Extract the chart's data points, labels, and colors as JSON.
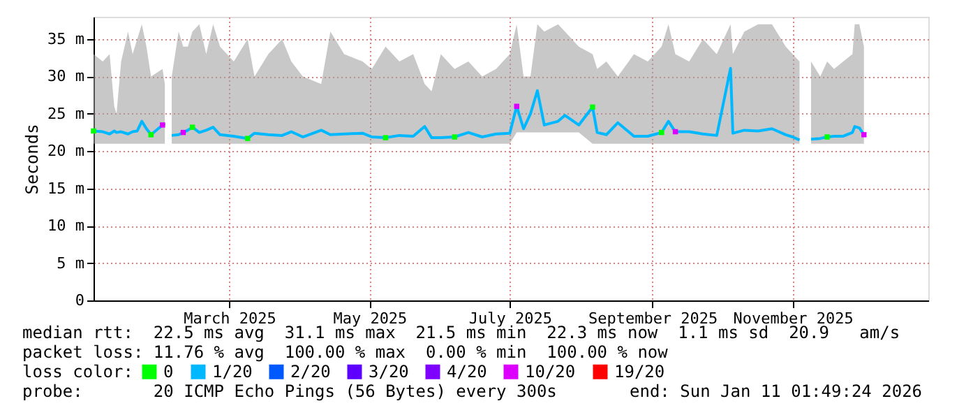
{
  "chart_data": {
    "type": "line",
    "ylabel": "Seconds",
    "legend_title": "loss color:",
    "legend": "bottom",
    "grid": true,
    "line_style": "solid",
    "xlim": [
      "2025-01-01",
      "2025-12-30"
    ],
    "xticks": [
      {
        "value": "2025-03-01",
        "label": "March 2025"
      },
      {
        "value": "2025-05-01",
        "label": "May 2025"
      },
      {
        "value": "2025-07-01",
        "label": "July 2025"
      },
      {
        "value": "2025-09-01",
        "label": "September 2025"
      },
      {
        "value": "2025-11-01",
        "label": "November 2025"
      }
    ],
    "ylim": [
      0,
      38
    ],
    "yticks": [
      0,
      {
        "value": 5,
        "label": "5 m"
      },
      {
        "value": 10,
        "label": "10 m"
      },
      {
        "value": 15,
        "label": "15 m"
      },
      {
        "value": 20,
        "label": "20 m"
      },
      {
        "value": 25,
        "label": "25 m"
      },
      {
        "value": 30,
        "label": "30 m"
      },
      {
        "value": 35,
        "label": "35 m"
      }
    ],
    "x": [
      "2025-01-01",
      "2025-01-05",
      "2025-01-08",
      "2025-01-10",
      "2025-01-11",
      "2025-01-13",
      "2025-01-16",
      "2025-01-18",
      "2025-01-20",
      "2025-01-22",
      "2025-01-24",
      "2025-01-26",
      "2025-01-31",
      "2025-02-01",
      "2025-02-02",
      "2025-02-04",
      "2025-02-07",
      "2025-02-09",
      "2025-02-11",
      "2025-02-13",
      "2025-02-16",
      "2025-02-19",
      "2025-02-22",
      "2025-02-25",
      "2025-03-03",
      "2025-03-09",
      "2025-03-12",
      "2025-03-18",
      "2025-03-24",
      "2025-03-28",
      "2025-04-02",
      "2025-04-10",
      "2025-04-14",
      "2025-04-20",
      "2025-04-28",
      "2025-05-02",
      "2025-05-08",
      "2025-05-14",
      "2025-05-20",
      "2025-05-25",
      "2025-05-28",
      "2025-06-01",
      "2025-06-07",
      "2025-06-13",
      "2025-06-19",
      "2025-06-25",
      "2025-07-01",
      "2025-07-04",
      "2025-07-07",
      "2025-07-10",
      "2025-07-13",
      "2025-07-16",
      "2025-07-22",
      "2025-07-25",
      "2025-07-31",
      "2025-08-06",
      "2025-08-08",
      "2025-08-12",
      "2025-08-17",
      "2025-08-24",
      "2025-08-30",
      "2025-09-05",
      "2025-09-08",
      "2025-09-11",
      "2025-09-17",
      "2025-09-23",
      "2025-09-29",
      "2025-10-05",
      "2025-10-06",
      "2025-10-11",
      "2025-10-17",
      "2025-10-23",
      "2025-10-29",
      "2025-11-01",
      "2025-11-04",
      "2025-11-06",
      "2025-11-09",
      "2025-11-13",
      "2025-11-16",
      "2025-11-19",
      "2025-11-23",
      "2025-11-27",
      "2025-11-28",
      "2025-11-30",
      "2025-12-02"
    ],
    "series": [
      {
        "name": "0",
        "type": "scatter",
        "marker": "square",
        "color": "#00ff00",
        "x": [
          "2025-01-01",
          "2025-01-26",
          "2025-02-13",
          "2025-03-09",
          "2025-05-08",
          "2025-06-07",
          "2025-08-06",
          "2025-09-05",
          "2025-11-16"
        ],
        "values": [
          22.7,
          22.2,
          23.2,
          21.7,
          21.8,
          21.9,
          25.9,
          22.5,
          21.9
        ]
      },
      {
        "name": "1/20",
        "color": "#00b8ff",
        "values": [
          22.7,
          22.6,
          22.3,
          22.7,
          22.5,
          22.6,
          22.3,
          22.6,
          22.7,
          24.0,
          23.0,
          22.2,
          23.5,
          23.7,
          null,
          22.1,
          22.2,
          22.5,
          22.8,
          23.2,
          22.5,
          22.8,
          23.2,
          22.2,
          22.0,
          21.7,
          22.4,
          22.2,
          22.1,
          22.6,
          21.9,
          22.8,
          22.2,
          22.3,
          22.4,
          21.9,
          21.8,
          22.1,
          22.0,
          23.3,
          21.8,
          21.8,
          21.9,
          22.5,
          21.9,
          22.3,
          22.4,
          26.0,
          23.0,
          25.0,
          28.1,
          23.5,
          24.0,
          24.8,
          23.5,
          25.9,
          22.5,
          22.2,
          23.8,
          22.0,
          22.0,
          22.5,
          24.0,
          22.6,
          22.6,
          22.3,
          22.1,
          31.1,
          22.4,
          22.8,
          22.7,
          23.0,
          22.2,
          21.9,
          21.5,
          null,
          21.6,
          21.7,
          21.9,
          22.0,
          22.0,
          22.5,
          23.3,
          23.1,
          22.2
        ],
        "lower": [
          21,
          21,
          21,
          21,
          21,
          21,
          21,
          21,
          21,
          21,
          21,
          21,
          21,
          21,
          null,
          21,
          21,
          21,
          21,
          21,
          21,
          21,
          21,
          21,
          21,
          21,
          21,
          21,
          21,
          21,
          21,
          21,
          21,
          21,
          21,
          21,
          21,
          21,
          21,
          21,
          21,
          21,
          21,
          21,
          21,
          21,
          21,
          22.5,
          22.5,
          22.5,
          22.5,
          22.5,
          22.5,
          22.5,
          22.5,
          21,
          21,
          21,
          21,
          21,
          21,
          21,
          21,
          21,
          21,
          21,
          21,
          21,
          21,
          21,
          21,
          21,
          21,
          21,
          21,
          null,
          21,
          21,
          21,
          21,
          21,
          21,
          21,
          21,
          21
        ],
        "upper": [
          33,
          32,
          33,
          26,
          25,
          32,
          36,
          33,
          35,
          37,
          34,
          30,
          31,
          29,
          null,
          30,
          36,
          34,
          34,
          36,
          37,
          33,
          37,
          34,
          32,
          35,
          30,
          33,
          35,
          32,
          30,
          29,
          36,
          33,
          32,
          31,
          34,
          32,
          33,
          29,
          28,
          33,
          31,
          32,
          30,
          31,
          33,
          37,
          30,
          30,
          37,
          36,
          37,
          36,
          34,
          33,
          31,
          32,
          30,
          33,
          32,
          34,
          37,
          33,
          32,
          35,
          33,
          37,
          33,
          36,
          37,
          37,
          34,
          33,
          32,
          null,
          32,
          30,
          32,
          31,
          32,
          33,
          37,
          37,
          34
        ]
      },
      {
        "name": "2/20",
        "type": "scatter",
        "color": "#0059ff",
        "values": [
          null,
          null,
          null,
          null,
          null,
          null,
          null,
          null,
          null,
          null,
          null,
          null,
          null,
          null,
          null,
          null,
          null,
          null,
          null,
          null,
          null,
          null,
          null,
          null,
          null,
          null,
          null,
          null,
          null,
          null,
          null,
          null,
          null,
          null,
          null,
          null,
          null,
          null,
          null,
          null,
          null,
          null,
          null,
          null,
          null,
          null,
          null,
          null,
          null,
          null,
          null,
          null,
          null,
          null,
          null,
          null,
          null,
          null,
          null,
          null,
          null,
          null,
          null,
          null,
          null,
          null,
          null,
          null,
          null,
          null,
          null,
          null,
          null,
          null,
          null,
          null,
          null,
          null,
          null,
          null,
          null,
          null,
          null,
          null,
          null
        ]
      },
      {
        "name": "3/20",
        "type": "scatter",
        "color": "#5e00ff",
        "values": [
          null,
          null,
          null,
          null,
          null,
          null,
          null,
          null,
          null,
          null,
          null,
          null,
          null,
          null,
          null,
          null,
          null,
          null,
          null,
          null,
          null,
          null,
          null,
          null,
          null,
          null,
          null,
          null,
          null,
          null,
          null,
          null,
          null,
          null,
          null,
          null,
          null,
          null,
          null,
          null,
          null,
          null,
          null,
          null,
          null,
          null,
          null,
          null,
          null,
          null,
          null,
          null,
          null,
          null,
          null,
          null,
          null,
          null,
          null,
          null,
          null,
          null,
          null,
          null,
          null,
          null,
          null,
          null,
          null,
          null,
          null,
          null,
          null,
          null,
          null,
          null,
          null,
          null,
          null,
          null,
          null,
          null,
          null,
          null,
          null
        ]
      },
      {
        "name": "4/20",
        "type": "scatter",
        "color": "#7e00ff",
        "values": [
          null,
          null,
          null,
          null,
          null,
          null,
          null,
          null,
          null,
          null,
          null,
          null,
          null,
          null,
          null,
          null,
          null,
          null,
          null,
          null,
          null,
          null,
          null,
          null,
          null,
          null,
          null,
          null,
          null,
          null,
          null,
          null,
          null,
          null,
          null,
          null,
          null,
          null,
          null,
          null,
          null,
          null,
          null,
          null,
          null,
          null,
          null,
          null,
          null,
          null,
          null,
          null,
          null,
          null,
          null,
          null,
          null,
          null,
          null,
          null,
          null,
          null,
          null,
          null,
          null,
          null,
          null,
          null,
          null,
          null,
          null,
          null,
          null,
          null,
          null,
          null,
          null,
          null,
          null,
          null,
          null,
          null,
          null,
          null,
          null
        ]
      },
      {
        "name": "10/20",
        "type": "scatter",
        "marker": "square",
        "color": "#dd00ff",
        "x": [
          "2025-01-31",
          "2025-02-09",
          "2025-07-04",
          "2025-09-11",
          "2025-12-02"
        ],
        "values": [
          23.5,
          22.5,
          26.0,
          22.6,
          22.2
        ]
      },
      {
        "name": "19/20",
        "type": "scatter",
        "color": "#ff0000",
        "values": [
          null,
          null,
          null,
          null,
          null,
          null,
          null,
          null,
          null,
          null,
          null,
          null,
          null,
          null,
          null,
          null,
          null,
          null,
          null,
          null,
          null,
          null,
          null,
          null,
          null,
          null,
          null,
          null,
          null,
          null,
          null,
          null,
          null,
          null,
          null,
          null,
          null,
          null,
          null,
          null,
          null,
          null,
          null,
          null,
          null,
          null,
          null,
          null,
          null,
          null,
          null,
          null,
          null,
          null,
          null,
          null,
          null,
          null,
          null,
          null,
          null,
          null,
          null,
          null,
          null,
          null,
          null,
          null,
          null,
          null,
          null,
          null,
          null,
          null,
          null,
          null,
          null,
          null,
          null,
          null,
          null,
          null,
          null,
          null,
          null
        ]
      }
    ],
    "annotations": [
      "median rtt:  22.5 ms avg  31.1 ms max  21.5 ms min  22.3 ms now  1.1 ms sd  20.9   am/s",
      "packet loss: 11.76 % avg  100.00 % max  0.00 % min  100.00 % now",
      "probe:       20 ICMP Echo Pings (56 Bytes) every 300s",
      "end: Sun Jan 11 01:49:24 2026"
    ]
  }
}
